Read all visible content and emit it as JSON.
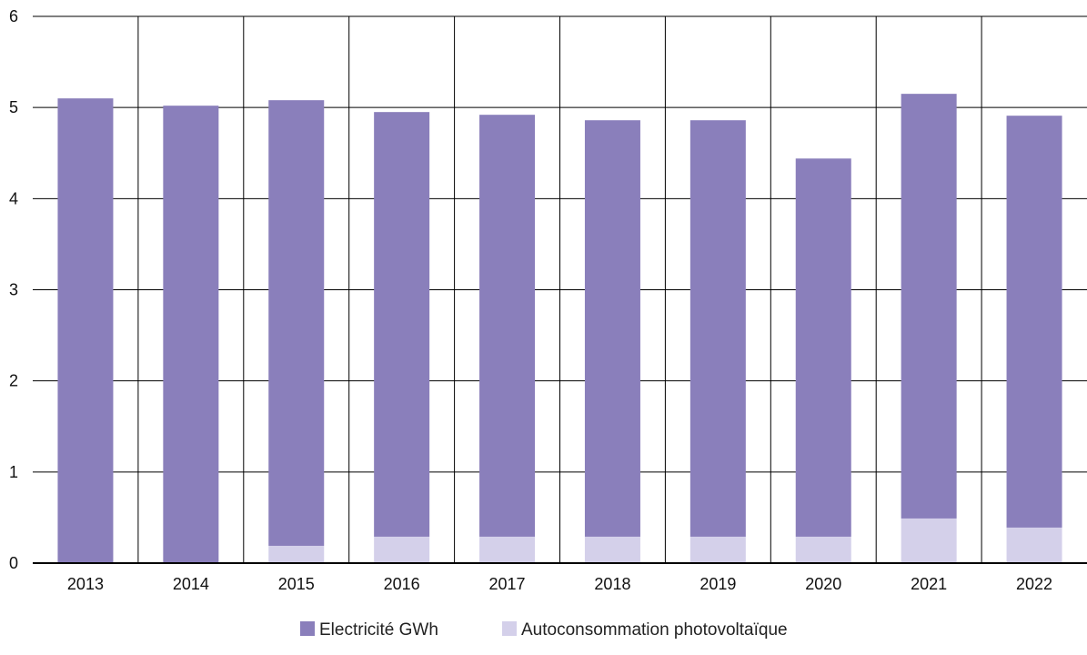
{
  "chart_data": {
    "type": "bar",
    "stacked": true,
    "categories": [
      "2013",
      "2014",
      "2015",
      "2016",
      "2017",
      "2018",
      "2019",
      "2020",
      "2021",
      "2022"
    ],
    "series": [
      {
        "name": "Autoconsommation photovoltaïque",
        "color": "#d4d0ea",
        "values": [
          0,
          0,
          0.19,
          0.29,
          0.29,
          0.29,
          0.29,
          0.29,
          0.49,
          0.39
        ]
      },
      {
        "name": "Electricité GWh",
        "color": "#8a7fbb",
        "values": [
          5.1,
          5.02,
          4.89,
          4.66,
          4.63,
          4.57,
          4.57,
          4.15,
          4.66,
          4.52
        ]
      }
    ],
    "ylim": [
      0,
      6
    ],
    "yticks": [
      "0",
      "1",
      "2",
      "3",
      "4",
      "5",
      "6"
    ],
    "grid": true,
    "legend_position": "bottom-center",
    "title": "",
    "xlabel": "",
    "ylabel": ""
  },
  "legend": [
    {
      "label": "Electricité GWh",
      "color": "#8a7fbb"
    },
    {
      "label": "Autoconsommation photovoltaïque",
      "color": "#d4d0ea"
    }
  ]
}
